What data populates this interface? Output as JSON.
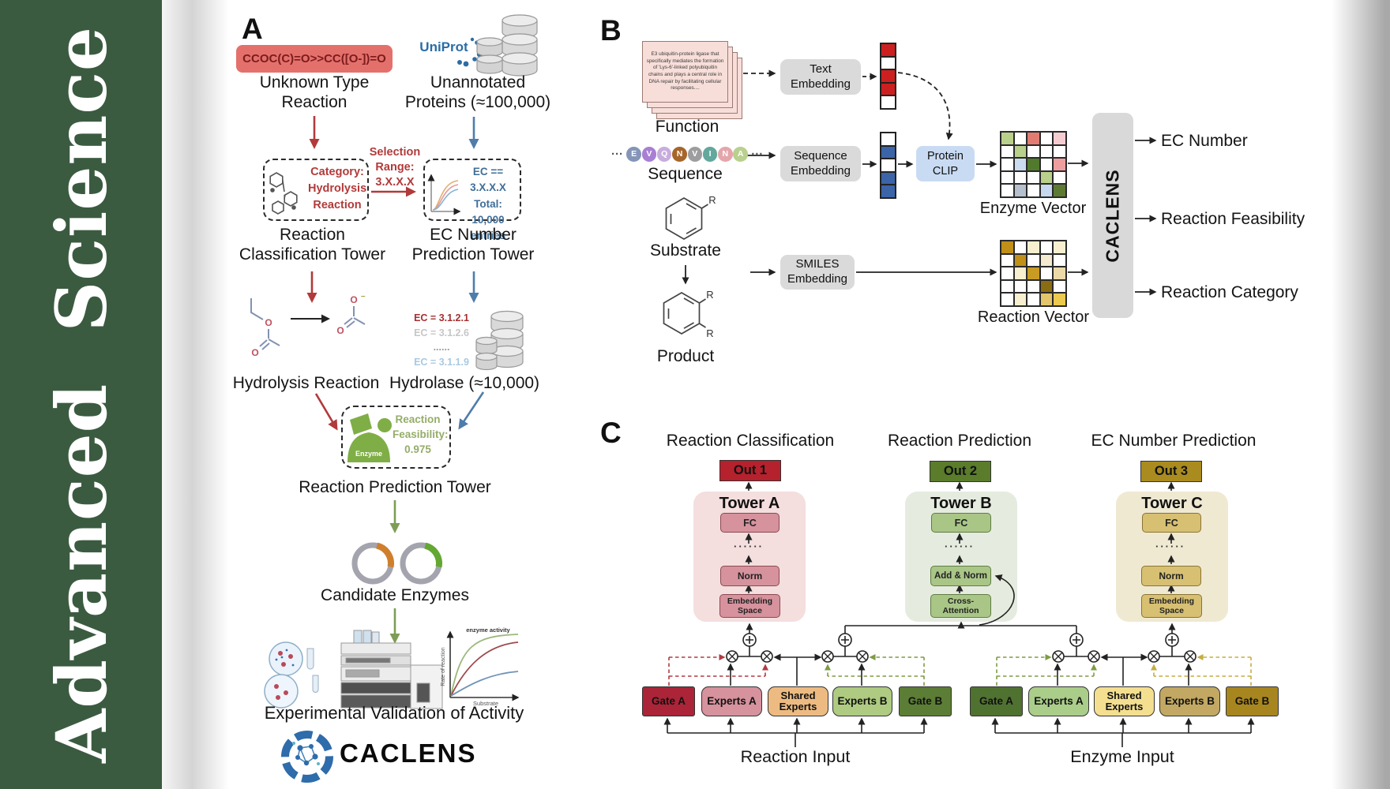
{
  "colors": {
    "sidebar_green": "#3b5b40",
    "flow_red": "#b23a3a",
    "flow_blue": "#4e7dac",
    "flow_green": "#7d9d55",
    "smiles_box_bg": "#e4706c",
    "towerA_accent": "#b5212d",
    "towerB_accent": "#5a7c2b",
    "towerC_accent": "#a98b1f"
  },
  "sidebar": {
    "journal_name": "Advanced Science"
  },
  "panelA": {
    "label": "A",
    "smiles": "CCOC(C)=O>>CC([O-])=O",
    "unknown_reaction": "Unknown Type\nReaction",
    "uniprot": "UniProt",
    "unannotated": "Unannotated\nProteins (≈100,000)",
    "category_box": "Category:\nHydrolysis\nReaction",
    "selection": "Selection\nRange:\n3.X.X.X",
    "ec_box": "EC == 3.X.X.X\nTotal: 10,000\nentries",
    "tower1": "Reaction\nClassification Tower",
    "tower2": "EC Number\nPrediction Tower",
    "hydrolysis": "Hydrolysis Reaction",
    "hydrolase": "Hydrolase (≈10,000)",
    "ec_list": [
      {
        "text": "EC = 3.1.2.1",
        "color": "#a63030"
      },
      {
        "text": "EC = 3.1.2.6",
        "color": "#c6c6c6"
      },
      {
        "text": "......",
        "color": "#9a9a9a"
      },
      {
        "text": "EC = 3.1.1.9",
        "color": "#a9c9e2"
      }
    ],
    "enzyme": "Enzyme",
    "feasibility": "Reaction\nFeasibility:\n0.975",
    "tower3": "Reaction Prediction Tower",
    "candidates": "Candidate Enzymes",
    "graph": {
      "curve_label": "enzyme activity",
      "ylabel": "Rate of reaction",
      "xlabel": "Substrate"
    },
    "validation": "Experimental Validation of Activity",
    "logo": "CACLENS",
    "atom_o": "O",
    "atom_minus": "–"
  },
  "panelB": {
    "label": "B",
    "function_card_text": "E3 ubiquitin-protein ligase that specifically mediates the formation of 'Lys-6'-linked polyubiquitin chains and plays a central role in DNA repair by facilitating cellular responses....",
    "function_label": "Function",
    "sequence_label": "Sequence",
    "ellipsis": "···",
    "residues": [
      {
        "letter": "E",
        "color": "#8495b8"
      },
      {
        "letter": "V",
        "color": "#a87fd4"
      },
      {
        "letter": "Q",
        "color": "#c7addc"
      },
      {
        "letter": "N",
        "color": "#a6662a"
      },
      {
        "letter": "V",
        "color": "#9d9da0"
      },
      {
        "letter": "I",
        "color": "#62a89c"
      },
      {
        "letter": "N",
        "color": "#e4a6ab"
      },
      {
        "letter": "A",
        "color": "#b9d08f"
      }
    ],
    "text_embedding": "Text\nEmbedding",
    "sequence_embedding": "Sequence\nEmbedding",
    "protein_clip": "Protein\nCLIP",
    "smiles_embedding": "SMILES\nEmbedding",
    "substrate_label": "Substrate",
    "product_label": "Product",
    "r_group": "R",
    "text_vector": [
      "#cc2020",
      "#ffffff",
      "#cc2020",
      "#cc2020",
      "#ffffff"
    ],
    "seq_vector": [
      "#ffffff",
      "#3c64a8",
      "#ffffff",
      "#3c64a8",
      "#3c64a8"
    ],
    "enzyme_vector_cells": [
      [
        "#b9d08b",
        "#ffffff",
        "#e27c72",
        "#ffffff",
        "#f5cdd1"
      ],
      [
        "#ffffff",
        "#b9d08b",
        "#ffffff",
        "#ffffff",
        "#ffffff"
      ],
      [
        "#ffffff",
        "#ccdcf0",
        "#527a2c",
        "#ffffff",
        "#ee9e9e"
      ],
      [
        "#ffffff",
        "#ffffff",
        "#ffffff",
        "#b9d08b",
        "#ffffff"
      ],
      [
        "#ffffff",
        "#b5c0ce",
        "#ffffff",
        "#c5d8ef",
        "#5d7a33"
      ]
    ],
    "reaction_vector_cells": [
      [
        "#c09018",
        "#ffffff",
        "#f7efcf",
        "#ffffff",
        "#f7efcf"
      ],
      [
        "#ffffff",
        "#c09018",
        "#ffffff",
        "#f4ead0",
        "#ffffff"
      ],
      [
        "#ffffff",
        "#f7efcf",
        "#c89b22",
        "#ffffff",
        "#ecd9a8"
      ],
      [
        "#ffffff",
        "#ffffff",
        "#ffffff",
        "#8a6d12",
        "#ffffff"
      ],
      [
        "#ffffff",
        "#f7efcf",
        "#ffffff",
        "#e3c66c",
        "#ecc94f"
      ]
    ],
    "enzyme_vector_label": "Enzyme Vector",
    "reaction_vector_label": "Reaction Vector",
    "caclens_block": "CACLENS",
    "outputs": [
      "EC Number",
      "Reaction Feasibility",
      "Reaction Category"
    ]
  },
  "panelC": {
    "label": "C",
    "titles": [
      "Reaction Classification",
      "Reaction Prediction",
      "EC Number Prediction"
    ],
    "outs": [
      "Out 1",
      "Out 2",
      "Out 3"
    ],
    "towers": [
      "Tower A",
      "Tower B",
      "Tower C"
    ],
    "dots": "······",
    "towerA_layers": [
      "FC",
      "Norm",
      "Embedding\nSpace"
    ],
    "towerB_layers": [
      "FC",
      "Add & Norm",
      "Cross-\nAttention"
    ],
    "towerC_layers": [
      "FC",
      "Norm",
      "Embedding\nSpace"
    ],
    "moe_left": [
      "Gate A",
      "Experts A",
      "Shared\nExperts",
      "Experts B",
      "Gate B"
    ],
    "moe_right": [
      "Gate A",
      "Experts A",
      "Shared\nExperts",
      "Experts B",
      "Gate B"
    ],
    "inputs": [
      "Reaction Input",
      "Enzyme Input"
    ]
  }
}
